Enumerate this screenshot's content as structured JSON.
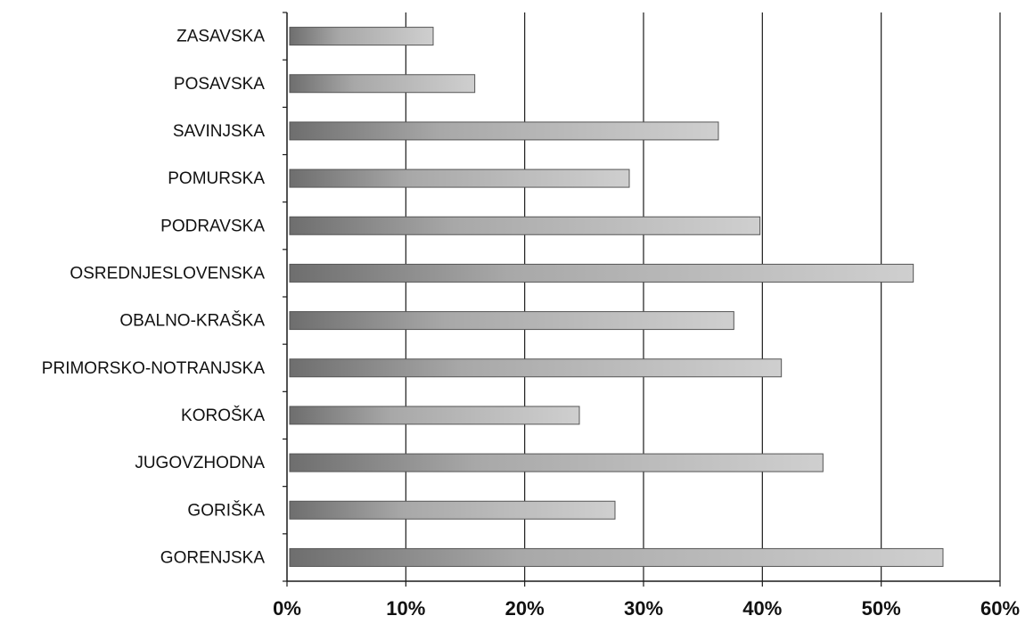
{
  "chart_data": {
    "type": "bar",
    "orientation": "horizontal",
    "title": "",
    "xlabel": "",
    "ylabel": "",
    "categories": [
      "ZASAVSKA",
      "POSAVSKA",
      "SAVINJSKA",
      "POMURSKA",
      "PODRAVSKA",
      "OSREDNJESLOVENSKA",
      "OBALNO-KRAŠKA",
      "PRIMORSKO-NOTRANJSKA",
      "KOROŠKA",
      "JUGOVZHODNA",
      "GORIŠKA",
      "GORENJSKA"
    ],
    "values": [
      12.3,
      15.8,
      36.3,
      28.8,
      39.8,
      52.7,
      37.6,
      41.6,
      24.6,
      45.1,
      27.6,
      55.2
    ],
    "xlim": [
      0,
      60
    ],
    "xticks": [
      0,
      10,
      20,
      30,
      40,
      50,
      60
    ],
    "xtick_labels": [
      "0%",
      "10%",
      "20%",
      "30%",
      "40%",
      "50%",
      "60%"
    ],
    "grid": true,
    "legend": "none",
    "bar_color_dark": "#6e6e6e",
    "bar_color_light": "#cfcfcf"
  }
}
